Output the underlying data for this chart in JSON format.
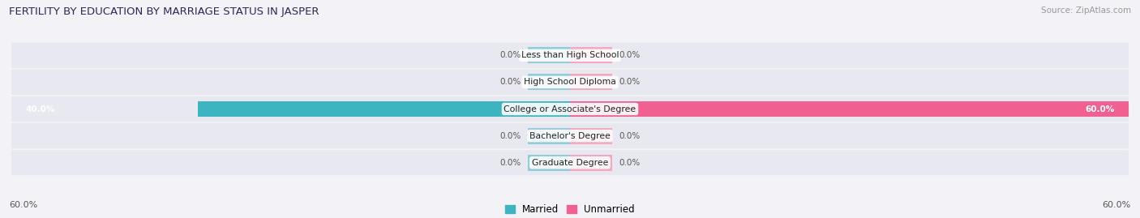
{
  "title": "FERTILITY BY EDUCATION BY MARRIAGE STATUS IN JASPER",
  "source": "Source: ZipAtlas.com",
  "categories": [
    "Less than High School",
    "High School Diploma",
    "College or Associate's Degree",
    "Bachelor's Degree",
    "Graduate Degree"
  ],
  "married_values": [
    0.0,
    0.0,
    40.0,
    0.0,
    0.0
  ],
  "unmarried_values": [
    0.0,
    0.0,
    60.0,
    0.0,
    0.0
  ],
  "married_color": "#3db5c0",
  "unmarried_color": "#f06090",
  "married_small_color": "#90cdd8",
  "unmarried_small_color": "#f5a8c0",
  "axis_max": 60.0,
  "small_bar_size": 4.5,
  "bg_color": "#f2f2f7",
  "row_bg_color": "#e8e8f0",
  "title_color": "#2a2a5a",
  "value_color": "#555555",
  "source_color": "#999999",
  "center_label_bg": "#ffffff"
}
